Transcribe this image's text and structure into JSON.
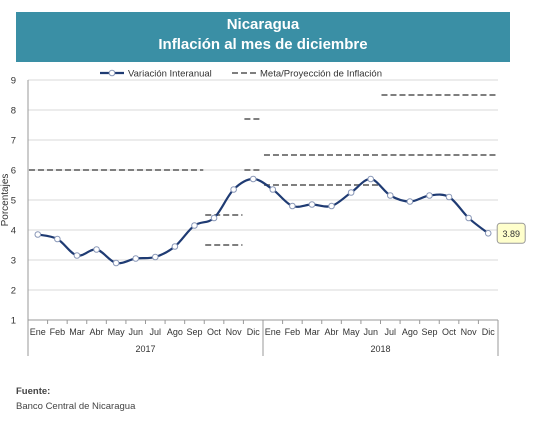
{
  "header": {
    "title_line1": "Nicaragua",
    "title_line2": "Inflación al mes de diciembre",
    "background_color": "#3a8fa5"
  },
  "source": {
    "label": "Fuente:",
    "text": "Banco Central de Nicaragua"
  },
  "chart_data": {
    "type": "line",
    "ylabel": "Porcentajes",
    "ylim": [
      1,
      9
    ],
    "yticks": [
      1,
      2,
      3,
      4,
      5,
      6,
      7,
      8,
      9
    ],
    "grid": "horizontal",
    "legend_position": "top",
    "categories": [
      "Ene",
      "Feb",
      "Mar",
      "Abr",
      "May",
      "Jun",
      "Jul",
      "Ago",
      "Sep",
      "Oct",
      "Nov",
      "Dic",
      "Ene",
      "Feb",
      "Mar",
      "Abr",
      "May",
      "Jun",
      "Jul",
      "Ago",
      "Sep",
      "Oct",
      "Nov",
      "Dic"
    ],
    "groups": [
      {
        "label": "2017",
        "start": 0,
        "end": 11
      },
      {
        "label": "2018",
        "start": 12,
        "end": 23
      }
    ],
    "series": [
      {
        "name": "Variación Interanual",
        "color": "#1f3b73",
        "values": [
          3.85,
          3.7,
          3.15,
          3.35,
          2.9,
          3.05,
          3.1,
          3.45,
          4.15,
          4.4,
          5.35,
          5.7,
          5.35,
          4.8,
          4.85,
          4.8,
          5.25,
          5.7,
          5.15,
          4.95,
          5.15,
          5.1,
          4.4,
          3.89
        ],
        "last_label": "3.89"
      }
    ],
    "reference_lines": {
      "name": "Meta/Proyección de Inflación",
      "color": "#7f7f7f",
      "segments": [
        {
          "from": 0,
          "to": 8,
          "value": 6.0
        },
        {
          "from": 9,
          "to": 10,
          "value": 4.5
        },
        {
          "from": 9,
          "to": 10,
          "value": 3.5
        },
        {
          "from": 11,
          "to": 11,
          "value": 7.7
        },
        {
          "from": 11,
          "to": 11,
          "value": 6.0
        },
        {
          "from": 12,
          "to": 17,
          "value": 6.5
        },
        {
          "from": 12,
          "to": 17,
          "value": 5.5
        },
        {
          "from": 18,
          "to": 23,
          "value": 8.5
        },
        {
          "from": 18,
          "to": 23,
          "value": 6.5
        }
      ]
    }
  }
}
